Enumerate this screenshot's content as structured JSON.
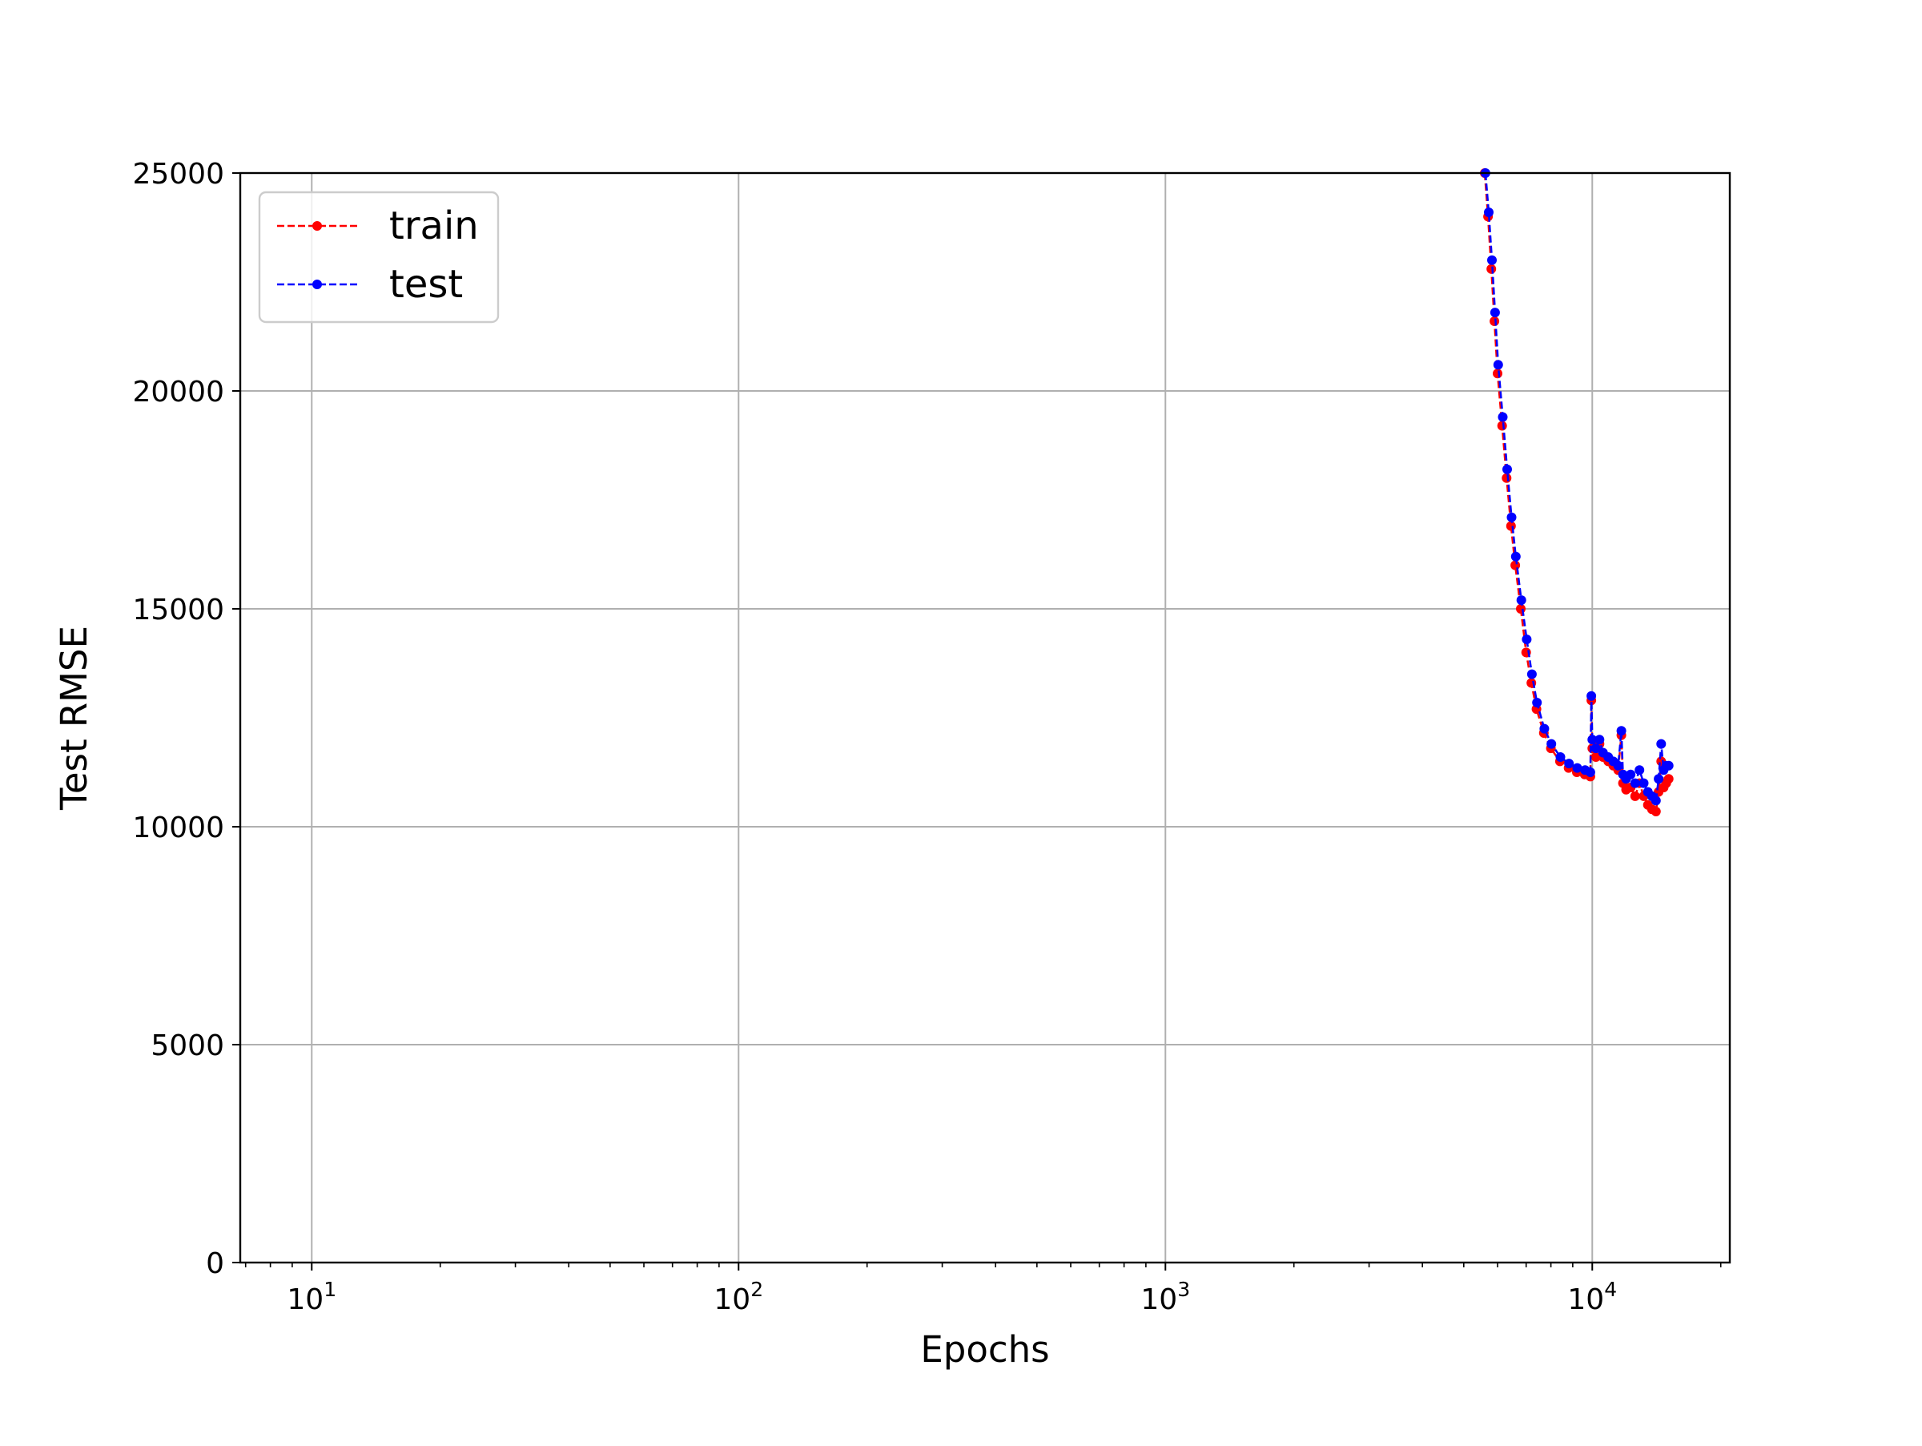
{
  "chart_data": {
    "type": "line",
    "title": "",
    "xlabel": "Epochs",
    "ylabel": "Test RMSE",
    "xscale": "log",
    "xlim": [
      6.8,
      21000
    ],
    "ylim": [
      0,
      25000
    ],
    "x_ticks": [
      {
        "value": 10,
        "base": "10",
        "exp": "1"
      },
      {
        "value": 100,
        "base": "10",
        "exp": "2"
      },
      {
        "value": 1000,
        "base": "10",
        "exp": "3"
      },
      {
        "value": 10000,
        "base": "10",
        "exp": "4"
      }
    ],
    "y_ticks": [
      {
        "value": 0,
        "label": "0"
      },
      {
        "value": 5000,
        "label": "5000"
      },
      {
        "value": 10000,
        "label": "10000"
      },
      {
        "value": 15000,
        "label": "15000"
      },
      {
        "value": 20000,
        "label": "20000"
      },
      {
        "value": 25000,
        "label": "25000"
      }
    ],
    "grid": true,
    "legend": {
      "position": "top-left"
    },
    "series": [
      {
        "name": "train",
        "color": "#ff0000",
        "linestyle": "dashed",
        "marker": "dot",
        "points": [
          [
            5600,
            25000
          ],
          [
            5700,
            24000
          ],
          [
            5800,
            22800
          ],
          [
            5900,
            21600
          ],
          [
            6000,
            20400
          ],
          [
            6150,
            19200
          ],
          [
            6300,
            18000
          ],
          [
            6450,
            16900
          ],
          [
            6600,
            16000
          ],
          [
            6800,
            15000
          ],
          [
            7000,
            14000
          ],
          [
            7200,
            13300
          ],
          [
            7400,
            12700
          ],
          [
            7700,
            12150
          ],
          [
            8000,
            11800
          ],
          [
            8400,
            11500
          ],
          [
            8800,
            11350
          ],
          [
            9200,
            11250
          ],
          [
            9600,
            11200
          ],
          [
            9900,
            11150
          ],
          [
            9950,
            12900
          ],
          [
            10000,
            11800
          ],
          [
            10200,
            11600
          ],
          [
            10400,
            11900
          ],
          [
            10600,
            11600
          ],
          [
            10900,
            11500
          ],
          [
            11200,
            11400
          ],
          [
            11500,
            11300
          ],
          [
            11700,
            12100
          ],
          [
            11800,
            11000
          ],
          [
            12000,
            10850
          ],
          [
            12300,
            10900
          ],
          [
            12600,
            10700
          ],
          [
            12900,
            11000
          ],
          [
            13200,
            10700
          ],
          [
            13500,
            10500
          ],
          [
            13800,
            10400
          ],
          [
            14100,
            10350
          ],
          [
            14300,
            10800
          ],
          [
            14500,
            11500
          ],
          [
            14700,
            10900
          ],
          [
            14900,
            11000
          ],
          [
            15100,
            11100
          ]
        ]
      },
      {
        "name": "test",
        "color": "#0000ff",
        "linestyle": "dashed",
        "marker": "dot",
        "points": [
          [
            5620,
            25000
          ],
          [
            5720,
            24100
          ],
          [
            5820,
            23000
          ],
          [
            5920,
            21800
          ],
          [
            6020,
            20600
          ],
          [
            6170,
            19400
          ],
          [
            6320,
            18200
          ],
          [
            6470,
            17100
          ],
          [
            6620,
            16200
          ],
          [
            6820,
            15200
          ],
          [
            7020,
            14300
          ],
          [
            7220,
            13500
          ],
          [
            7420,
            12850
          ],
          [
            7720,
            12250
          ],
          [
            8020,
            11900
          ],
          [
            8420,
            11600
          ],
          [
            8820,
            11450
          ],
          [
            9220,
            11350
          ],
          [
            9620,
            11300
          ],
          [
            9900,
            11250
          ],
          [
            9950,
            13000
          ],
          [
            10000,
            12000
          ],
          [
            10200,
            11800
          ],
          [
            10400,
            12000
          ],
          [
            10600,
            11700
          ],
          [
            10900,
            11600
          ],
          [
            11200,
            11500
          ],
          [
            11500,
            11400
          ],
          [
            11700,
            12200
          ],
          [
            11800,
            11200
          ],
          [
            12000,
            11100
          ],
          [
            12300,
            11200
          ],
          [
            12600,
            11000
          ],
          [
            12900,
            11300
          ],
          [
            13200,
            11000
          ],
          [
            13500,
            10800
          ],
          [
            13800,
            10700
          ],
          [
            14100,
            10600
          ],
          [
            14300,
            11100
          ],
          [
            14500,
            11900
          ],
          [
            14700,
            11300
          ],
          [
            14900,
            11400
          ],
          [
            15100,
            11400
          ]
        ]
      }
    ]
  }
}
